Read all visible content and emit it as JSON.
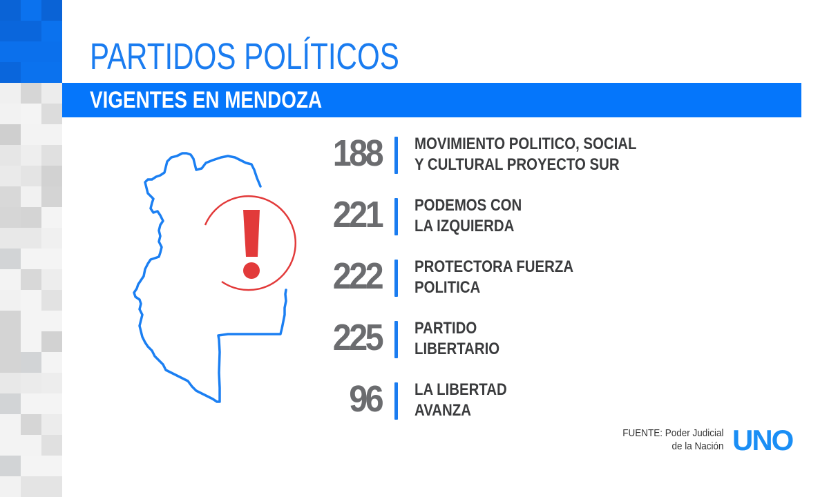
{
  "header": {
    "title": "PARTIDOS POLÍTICOS",
    "subtitle": "VIGENTES EN MENDOZA"
  },
  "parties": [
    {
      "number": "188",
      "line1": "MOVIMIENTO POLITICO, SOCIAL",
      "line2": "Y CULTURAL PROYECTO SUR"
    },
    {
      "number": "221",
      "line1": "PODEMOS CON",
      "line2": "LA IZQUIERDA"
    },
    {
      "number": "222",
      "line1": "PROTECTORA FUERZA",
      "line2": "POLITICA"
    },
    {
      "number": "225",
      "line1": "PARTIDO",
      "line2": "LIBERTARIO"
    },
    {
      "number": "96",
      "line1": "LA LIBERTAD",
      "line2": "AVANZA"
    }
  ],
  "footer": {
    "source_line1": "FUENTE: Poder Judicial",
    "source_line2": "de la Nación",
    "logo": "UNO"
  },
  "icons": {
    "map": "mendoza-province-outline-icon",
    "alert": "exclamation-circle-icon"
  },
  "colors": {
    "accent_blue": "#0576fb",
    "title_blue": "#1a7cf0",
    "number_gray": "#6b6c6f",
    "label_dark": "#3a3b3d",
    "alert_red": "#e23a3a"
  }
}
